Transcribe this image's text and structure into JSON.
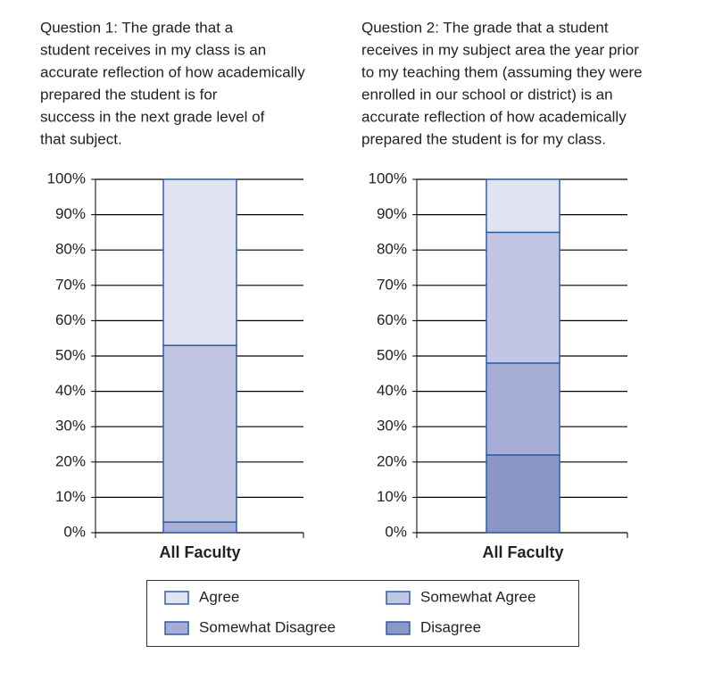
{
  "chart_data": [
    {
      "type": "stacked-bar",
      "title": [
        "Question 1: The grade that a",
        "student receives in my class is an",
        "accurate reflection of how academically",
        "prepared the student is for",
        "success in the next grade level of",
        "that subject."
      ],
      "categories": [
        "All Faculty"
      ],
      "series": [
        {
          "name": "Disagree",
          "color": "#8a96c6",
          "values": [
            0
          ]
        },
        {
          "name": "Somewhat Disagree",
          "color": "#a7aed6",
          "values": [
            3
          ]
        },
        {
          "name": "Somewhat Agree",
          "color": "#c3c6e2",
          "values": [
            50
          ]
        },
        {
          "name": "Agree",
          "color": "#e1e3f1",
          "values": [
            47
          ]
        }
      ],
      "ylim": [
        0,
        100
      ],
      "yticks": [
        {
          "value": 0,
          "label": "0%"
        },
        {
          "value": 10,
          "label": "10%"
        },
        {
          "value": 20,
          "label": "20%"
        },
        {
          "value": 30,
          "label": "30%"
        },
        {
          "value": 40,
          "label": "40%"
        },
        {
          "value": 50,
          "label": "50%"
        },
        {
          "value": 60,
          "label": "60%"
        },
        {
          "value": 70,
          "label": "70%"
        },
        {
          "value": 80,
          "label": "80%"
        },
        {
          "value": 90,
          "label": "90%"
        },
        {
          "value": 100,
          "label": "100%"
        }
      ],
      "grid": true
    },
    {
      "type": "stacked-bar",
      "title": [
        "Question 2: The grade that a student",
        "receives in my subject area the year prior",
        "to my teaching them (assuming they were",
        "enrolled in our school or district) is an",
        "accurate reflection of how academically",
        "prepared the student is for my class."
      ],
      "categories": [
        "All Faculty"
      ],
      "series": [
        {
          "name": "Disagree",
          "color": "#8a96c6",
          "values": [
            22
          ]
        },
        {
          "name": "Somewhat Disagree",
          "color": "#a7aed6",
          "values": [
            26
          ]
        },
        {
          "name": "Somewhat Agree",
          "color": "#c3c6e2",
          "values": [
            37
          ]
        },
        {
          "name": "Agree",
          "color": "#e1e3f1",
          "values": [
            15
          ]
        }
      ],
      "ylim": [
        0,
        100
      ],
      "yticks": [
        {
          "value": 0,
          "label": "0%"
        },
        {
          "value": 10,
          "label": "10%"
        },
        {
          "value": 20,
          "label": "20%"
        },
        {
          "value": 30,
          "label": "30%"
        },
        {
          "value": 40,
          "label": "40%"
        },
        {
          "value": 50,
          "label": "50%"
        },
        {
          "value": 60,
          "label": "60%"
        },
        {
          "value": 70,
          "label": "70%"
        },
        {
          "value": 80,
          "label": "80%"
        },
        {
          "value": 90,
          "label": "90%"
        },
        {
          "value": 100,
          "label": "100%"
        }
      ],
      "grid": true
    }
  ]
}
